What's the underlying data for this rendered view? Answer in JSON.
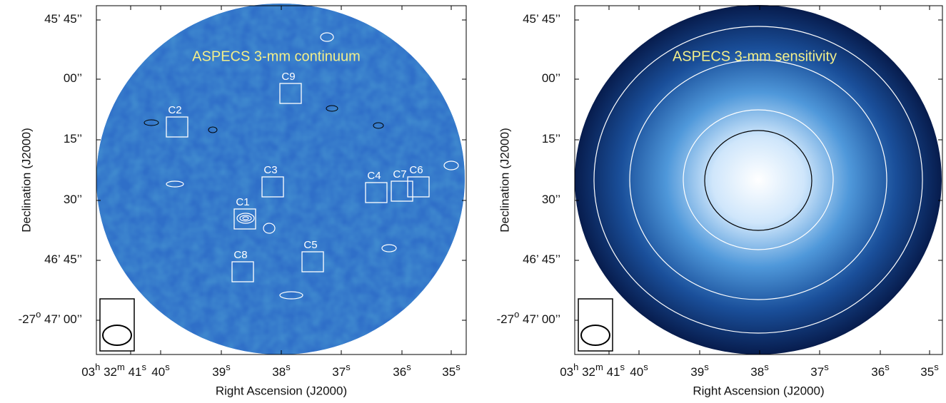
{
  "panels": [
    {
      "annotation": "ASPECS 3-mm continuum",
      "xlabel": "Right Ascension (J2000)",
      "ylabel": "Declination (J2000)",
      "xtick_labels": [
        "03h 32m 41s",
        "40s",
        "39s",
        "38s",
        "37s",
        "36s",
        "35s"
      ],
      "ytick_labels": [
        "45’ 45’’",
        "00’’",
        "15’’",
        "30’’",
        "46’ 45’’",
        "-27o 47’ 00’’"
      ],
      "sources": [
        "C9",
        "C2",
        "C3",
        "C1",
        "C8",
        "C5",
        "C4",
        "C7",
        "C6"
      ]
    },
    {
      "annotation": "ASPECS 3-mm sensitivity",
      "xlabel": "Right Ascension (J2000)",
      "ylabel": "Declination (J2000)",
      "xtick_labels": [
        "03h 32m 41s",
        "40s",
        "39s",
        "38s",
        "37s",
        "36s",
        "35s"
      ],
      "ytick_labels": [
        "45’ 45’’",
        "00’’",
        "15’’",
        "30’’",
        "46’ 45’’",
        "-27o 47’ 00’’"
      ]
    }
  ]
}
